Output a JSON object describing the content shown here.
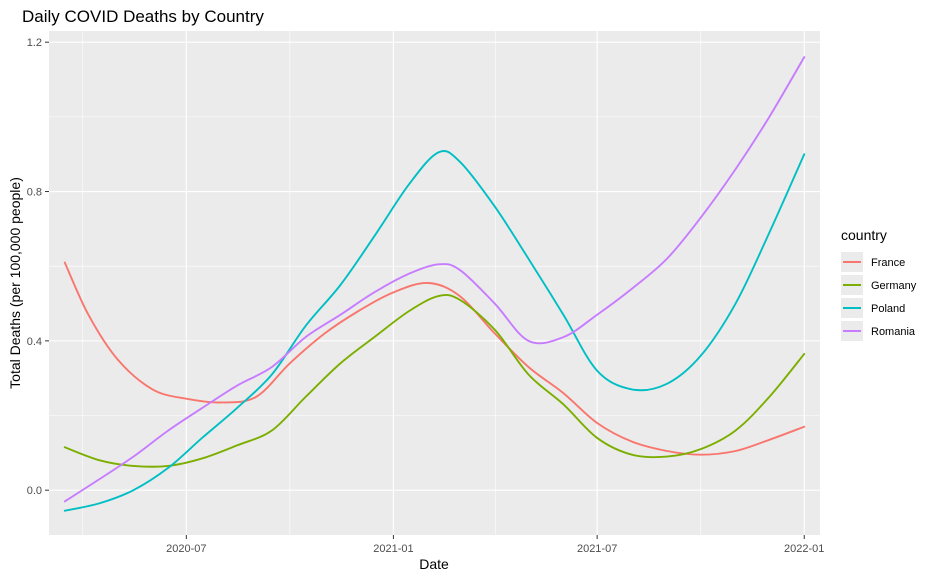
{
  "chart_data": {
    "type": "line",
    "title": "Daily COVID Deaths by Country",
    "xlabel": "Date",
    "ylabel": "Total Deaths (per 100,000 people)",
    "x_ticks": [
      "2020-07",
      "2021-01",
      "2021-07",
      "2022-01"
    ],
    "y_ticks": [
      "0.0",
      "0.4",
      "0.8",
      "1.2"
    ],
    "xlim": [
      "2020-03-01",
      "2022-01-15"
    ],
    "ylim": [
      -0.12,
      1.23
    ],
    "grid": true,
    "legend": {
      "title": "country",
      "position": "right"
    },
    "series": [
      {
        "name": "France",
        "color": "#F8766D",
        "points": [
          [
            "2020-03-15",
            0.61
          ],
          [
            "2020-04-05",
            0.47
          ],
          [
            "2020-05-01",
            0.35
          ],
          [
            "2020-06-01",
            0.27
          ],
          [
            "2020-07-01",
            0.245
          ],
          [
            "2020-08-01",
            0.235
          ],
          [
            "2020-09-01",
            0.25
          ],
          [
            "2020-10-01",
            0.34
          ],
          [
            "2020-11-01",
            0.42
          ],
          [
            "2020-12-01",
            0.48
          ],
          [
            "2021-01-01",
            0.53
          ],
          [
            "2021-02-01",
            0.555
          ],
          [
            "2021-03-01",
            0.52
          ],
          [
            "2021-04-01",
            0.42
          ],
          [
            "2021-05-01",
            0.33
          ],
          [
            "2021-06-01",
            0.26
          ],
          [
            "2021-07-01",
            0.18
          ],
          [
            "2021-08-01",
            0.13
          ],
          [
            "2021-09-01",
            0.105
          ],
          [
            "2021-10-01",
            0.095
          ],
          [
            "2021-11-01",
            0.105
          ],
          [
            "2021-12-01",
            0.135
          ],
          [
            "2022-01-01",
            0.17
          ]
        ]
      },
      {
        "name": "Germany",
        "color": "#7CAE00",
        "points": [
          [
            "2020-03-15",
            0.115
          ],
          [
            "2020-04-15",
            0.08
          ],
          [
            "2020-05-15",
            0.065
          ],
          [
            "2020-06-15",
            0.065
          ],
          [
            "2020-07-15",
            0.085
          ],
          [
            "2020-08-15",
            0.12
          ],
          [
            "2020-09-15",
            0.16
          ],
          [
            "2020-10-15",
            0.25
          ],
          [
            "2020-11-15",
            0.34
          ],
          [
            "2020-12-15",
            0.41
          ],
          [
            "2021-01-15",
            0.48
          ],
          [
            "2021-02-10",
            0.52
          ],
          [
            "2021-03-01",
            0.51
          ],
          [
            "2021-04-01",
            0.43
          ],
          [
            "2021-05-01",
            0.31
          ],
          [
            "2021-06-01",
            0.23
          ],
          [
            "2021-07-01",
            0.14
          ],
          [
            "2021-08-01",
            0.095
          ],
          [
            "2021-09-01",
            0.09
          ],
          [
            "2021-10-01",
            0.11
          ],
          [
            "2021-11-01",
            0.16
          ],
          [
            "2021-12-01",
            0.25
          ],
          [
            "2022-01-01",
            0.365
          ]
        ]
      },
      {
        "name": "Poland",
        "color": "#00BFC4",
        "points": [
          [
            "2020-03-15",
            -0.055
          ],
          [
            "2020-04-15",
            -0.035
          ],
          [
            "2020-05-15",
            0.0
          ],
          [
            "2020-06-15",
            0.06
          ],
          [
            "2020-07-15",
            0.14
          ],
          [
            "2020-08-15",
            0.22
          ],
          [
            "2020-09-15",
            0.31
          ],
          [
            "2020-10-15",
            0.44
          ],
          [
            "2020-11-15",
            0.55
          ],
          [
            "2020-12-15",
            0.68
          ],
          [
            "2021-01-15",
            0.82
          ],
          [
            "2021-02-10",
            0.905
          ],
          [
            "2021-03-01",
            0.88
          ],
          [
            "2021-04-01",
            0.76
          ],
          [
            "2021-05-01",
            0.62
          ],
          [
            "2021-06-01",
            0.47
          ],
          [
            "2021-07-01",
            0.32
          ],
          [
            "2021-08-01",
            0.27
          ],
          [
            "2021-09-01",
            0.285
          ],
          [
            "2021-10-01",
            0.36
          ],
          [
            "2021-11-01",
            0.5
          ],
          [
            "2021-12-01",
            0.69
          ],
          [
            "2022-01-01",
            0.9
          ]
        ]
      },
      {
        "name": "Romania",
        "color": "#C77CFF",
        "points": [
          [
            "2020-03-15",
            -0.03
          ],
          [
            "2020-04-15",
            0.03
          ],
          [
            "2020-05-15",
            0.09
          ],
          [
            "2020-06-15",
            0.16
          ],
          [
            "2020-07-15",
            0.22
          ],
          [
            "2020-08-15",
            0.28
          ],
          [
            "2020-09-15",
            0.33
          ],
          [
            "2020-10-15",
            0.41
          ],
          [
            "2020-11-15",
            0.47
          ],
          [
            "2020-12-15",
            0.53
          ],
          [
            "2021-01-15",
            0.58
          ],
          [
            "2021-02-10",
            0.605
          ],
          [
            "2021-03-01",
            0.59
          ],
          [
            "2021-04-01",
            0.5
          ],
          [
            "2021-05-01",
            0.4
          ],
          [
            "2021-06-01",
            0.41
          ],
          [
            "2021-07-01",
            0.47
          ],
          [
            "2021-08-01",
            0.54
          ],
          [
            "2021-09-01",
            0.62
          ],
          [
            "2021-10-01",
            0.73
          ],
          [
            "2021-11-01",
            0.86
          ],
          [
            "2021-12-01",
            1.0
          ],
          [
            "2022-01-01",
            1.16
          ]
        ]
      }
    ]
  }
}
